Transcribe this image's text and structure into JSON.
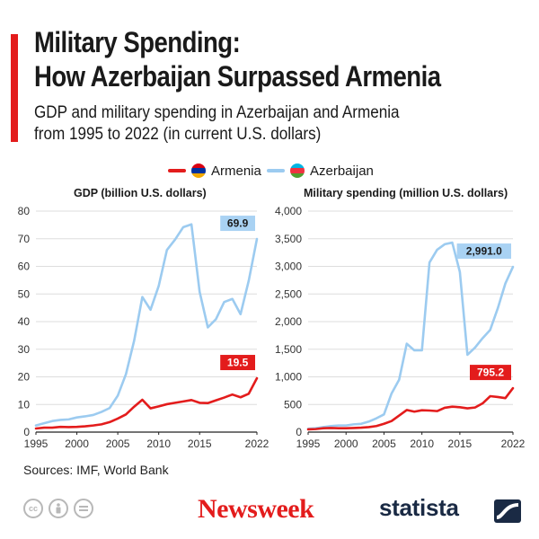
{
  "title": {
    "line1": "Military Spending:",
    "line2": "How Azerbaijan Surpassed Armenia"
  },
  "subtitle": {
    "line1": "GDP and military spending in Azerbaijan and Armenia",
    "line2": "from 1995 to 2022 (in current U.S. dollars)"
  },
  "legend": [
    {
      "label": "Armenia",
      "color": "#e31c1c"
    },
    {
      "label": "Azerbaijan",
      "color": "#9ccbf0"
    }
  ],
  "colors": {
    "armenia": "#e31c1c",
    "azerbaijan": "#9ccbf0",
    "azerbaijan_callout": "#a9d2f3",
    "accent": "#e31c1c",
    "grid": "#dddddd",
    "axis": "#222222"
  },
  "chart_data": [
    {
      "type": "line",
      "title": "GDP (billion U.S. dollars)",
      "x": [
        1995,
        1996,
        1997,
        1998,
        1999,
        2000,
        2001,
        2002,
        2003,
        2004,
        2005,
        2006,
        2007,
        2008,
        2009,
        2010,
        2011,
        2012,
        2013,
        2014,
        2015,
        2016,
        2017,
        2018,
        2019,
        2020,
        2021,
        2022
      ],
      "series": [
        {
          "name": "Armenia",
          "values": [
            1.3,
            1.6,
            1.6,
            1.9,
            1.8,
            1.9,
            2.1,
            2.4,
            2.8,
            3.6,
            4.9,
            6.4,
            9.2,
            11.7,
            8.6,
            9.3,
            10.1,
            10.6,
            11.1,
            11.6,
            10.6,
            10.5,
            11.5,
            12.5,
            13.6,
            12.6,
            13.9,
            19.5
          ]
        },
        {
          "name": "Azerbaijan",
          "values": [
            2.4,
            3.2,
            4.0,
            4.4,
            4.6,
            5.3,
            5.7,
            6.2,
            7.3,
            8.7,
            13.2,
            21.0,
            33.1,
            48.9,
            44.3,
            52.9,
            65.9,
            69.7,
            74.2,
            75.2,
            50.8,
            37.9,
            40.9,
            47.1,
            48.2,
            42.7,
            54.8,
            69.9
          ]
        }
      ],
      "callouts": {
        "azerbaijan": "69.9",
        "armenia": "19.5"
      },
      "ylim": [
        0,
        80
      ],
      "yticks": [
        0,
        10,
        20,
        30,
        40,
        50,
        60,
        70,
        80
      ],
      "yticklabels": [
        "0",
        "10",
        "20",
        "30",
        "40",
        "50",
        "60",
        "70",
        "80"
      ],
      "xticks": [
        1995,
        2000,
        2005,
        2010,
        2015,
        2022
      ],
      "xticklabels": [
        "1995",
        "2000",
        "2005",
        "2010",
        "2015",
        "2022"
      ],
      "grid": true
    },
    {
      "type": "line",
      "title": "Military spending (million U.S. dollars)",
      "x": [
        1995,
        1996,
        1997,
        1998,
        1999,
        2000,
        2001,
        2002,
        2003,
        2004,
        2005,
        2006,
        2007,
        2008,
        2009,
        2010,
        2011,
        2012,
        2013,
        2014,
        2015,
        2016,
        2017,
        2018,
        2019,
        2020,
        2021,
        2022
      ],
      "series": [
        {
          "name": "Armenia",
          "values": [
            50,
            55,
            70,
            75,
            70,
            70,
            75,
            80,
            90,
            110,
            150,
            200,
            300,
            400,
            370,
            395,
            390,
            380,
            440,
            460,
            450,
            430,
            445,
            520,
            650,
            635,
            615,
            795.2
          ]
        },
        {
          "name": "Azerbaijan",
          "values": [
            60,
            70,
            90,
            110,
            120,
            120,
            140,
            150,
            190,
            250,
            320,
            700,
            950,
            1600,
            1480,
            1480,
            3070,
            3300,
            3400,
            3430,
            2900,
            1400,
            1530,
            1700,
            1850,
            2240,
            2690,
            2991.0
          ]
        }
      ],
      "callouts": {
        "azerbaijan": "2,991.0",
        "armenia": "795.2"
      },
      "ylim": [
        0,
        4000
      ],
      "yticks": [
        0,
        500,
        1000,
        1500,
        2000,
        2500,
        3000,
        3500,
        4000
      ],
      "yticklabels": [
        "0",
        "500",
        "1,000",
        "1,500",
        "2,000",
        "2,500",
        "3,000",
        "3,500",
        "4,000"
      ],
      "xticks": [
        1995,
        2000,
        2005,
        2010,
        2015,
        2022
      ],
      "xticklabels": [
        "1995",
        "2000",
        "2005",
        "2010",
        "2015",
        "2022"
      ],
      "grid": true
    }
  ],
  "sources": "Sources: IMF, World Bank",
  "footer": {
    "cc_icons": [
      "cc-icon",
      "by-icon",
      "equals-icon"
    ],
    "publisher": "Newsweek",
    "brand": "statista"
  }
}
